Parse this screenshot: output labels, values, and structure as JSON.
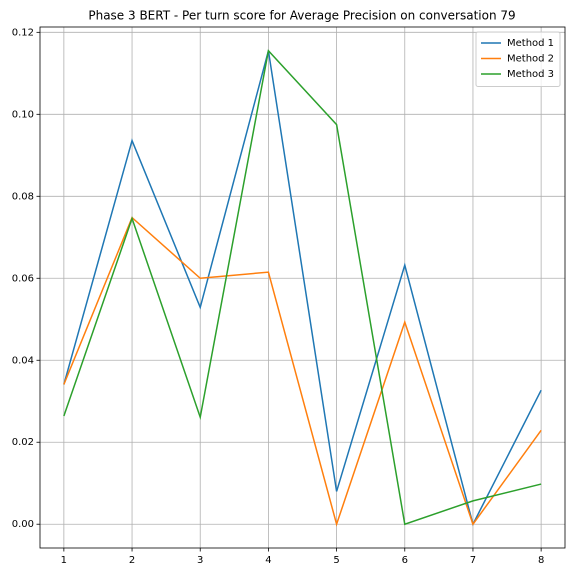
{
  "chart_data": {
    "type": "line",
    "title": "Phase 3 BERT - Per turn score for Average Precision on conversation 79",
    "x": [
      1,
      2,
      3,
      4,
      5,
      6,
      7,
      8
    ],
    "series": [
      {
        "name": "Method 1",
        "color": "#1f77b4",
        "values": [
          0.0341,
          0.0936,
          0.0529,
          0.1155,
          0.008,
          0.0632,
          0.0,
          0.0327
        ]
      },
      {
        "name": "Method 2",
        "color": "#ff7f0e",
        "values": [
          0.0341,
          0.0748,
          0.06,
          0.0615,
          0.0,
          0.0493,
          0.0,
          0.0229
        ]
      },
      {
        "name": "Method 3",
        "color": "#2ca02c",
        "values": [
          0.0264,
          0.0746,
          0.0261,
          0.1155,
          0.0975,
          0.0,
          0.0057,
          0.0098
        ]
      }
    ],
    "xlim": [
      0.65,
      8.35
    ],
    "xticks": [
      1,
      2,
      3,
      4,
      5,
      6,
      7,
      8
    ],
    "ylim": [
      -0.0058,
      0.1213
    ],
    "yticks": [
      {
        "value": 0,
        "label": "0.00"
      },
      {
        "value": 0.02,
        "label": "0.02"
      },
      {
        "value": 0.04,
        "label": "0.04"
      },
      {
        "value": 0.06,
        "label": "0.06"
      },
      {
        "value": 0.08,
        "label": "0.08"
      },
      {
        "value": 0.1,
        "label": "0.10"
      },
      {
        "value": 0.12,
        "label": "0.12"
      }
    ],
    "grid": true,
    "legend": "upper right"
  }
}
